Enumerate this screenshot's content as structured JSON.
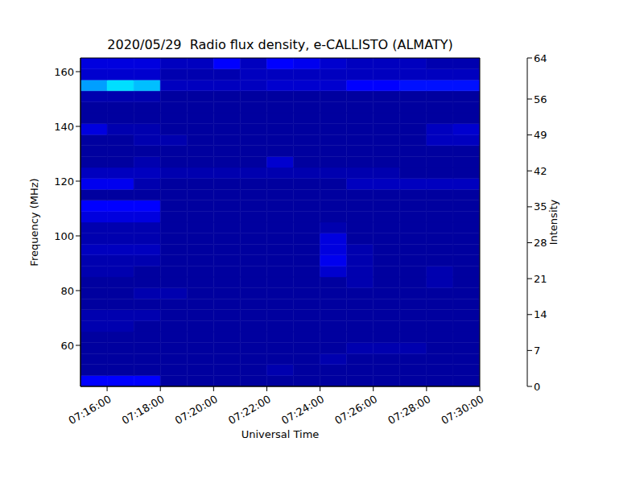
{
  "chart_data": {
    "type": "heatmap",
    "title": "2020/05/29  Radio flux density, e-CALLISTO (ALMATY)",
    "x_label": "Universal Time",
    "y_label": "Frequency (MHz)",
    "xlim": [
      26100,
      27000
    ],
    "xticks": [
      {
        "value": 26160,
        "label": "07:16:00"
      },
      {
        "value": 26280,
        "label": "07:18:00"
      },
      {
        "value": 26400,
        "label": "07:20:00"
      },
      {
        "value": 26520,
        "label": "07:22:00"
      },
      {
        "value": 26640,
        "label": "07:24:00"
      },
      {
        "value": 26760,
        "label": "07:26:00"
      },
      {
        "value": 26880,
        "label": "07:28:00"
      },
      {
        "value": 27000,
        "label": "07:30:00"
      }
    ],
    "ylim": [
      45,
      165
    ],
    "yticks": [
      60,
      80,
      100,
      120,
      140,
      160
    ],
    "grid": false,
    "color": "jet",
    "x_bins": [
      26100,
      26160,
      26220,
      26280,
      26340,
      26400,
      26460,
      26520,
      26580,
      26640,
      26700,
      26760,
      26820,
      26880,
      26940,
      27000
    ],
    "y_bins": [
      45,
      49,
      53,
      57,
      61,
      65,
      69,
      73,
      77,
      81,
      85,
      89,
      93,
      97,
      101,
      105,
      109,
      113,
      117,
      121,
      125,
      129,
      133,
      137,
      141,
      145,
      149,
      153,
      157,
      161,
      165
    ],
    "z": [
      [
        8,
        8,
        8,
        2,
        2,
        2,
        2,
        2,
        2,
        2,
        2,
        2,
        2,
        2,
        2
      ],
      [
        2,
        2,
        2,
        2,
        2,
        2,
        2,
        3,
        2,
        2,
        2,
        2,
        2,
        2,
        2
      ],
      [
        2,
        2,
        2,
        2,
        2,
        2,
        2,
        2,
        2,
        3,
        2,
        2,
        2,
        2,
        2
      ],
      [
        2,
        2,
        2,
        2,
        2,
        2,
        2,
        2,
        2,
        2,
        3,
        3,
        3,
        2,
        2
      ],
      [
        2,
        2,
        2,
        2,
        2,
        2,
        2,
        2,
        2,
        2,
        2,
        2,
        2,
        2,
        2
      ],
      [
        3,
        3,
        2,
        2,
        2,
        2,
        2,
        2,
        2,
        2,
        2,
        2,
        2,
        2,
        2
      ],
      [
        3,
        3,
        3,
        2,
        2,
        2,
        2,
        2,
        2,
        2,
        2,
        2,
        2,
        2,
        2
      ],
      [
        2,
        2,
        2,
        2,
        2,
        2,
        2,
        2,
        2,
        2,
        2,
        2,
        2,
        2,
        2
      ],
      [
        2,
        2,
        3,
        3,
        2,
        2,
        2,
        2,
        2,
        2,
        2,
        2,
        2,
        2,
        2
      ],
      [
        2,
        2,
        2,
        2,
        2,
        2,
        2,
        2,
        2,
        2,
        3,
        2,
        2,
        3,
        2
      ],
      [
        3,
        3,
        2,
        2,
        2,
        2,
        2,
        2,
        2,
        5,
        3,
        2,
        2,
        3,
        2
      ],
      [
        3,
        3,
        3,
        2,
        2,
        2,
        2,
        2,
        2,
        7,
        3,
        2,
        2,
        2,
        2
      ],
      [
        4,
        4,
        4,
        2,
        2,
        2,
        2,
        2,
        2,
        6,
        3,
        2,
        2,
        2,
        2
      ],
      [
        3,
        3,
        3,
        2,
        2,
        2,
        2,
        2,
        2,
        6,
        2,
        2,
        2,
        2,
        2
      ],
      [
        3,
        3,
        3,
        2,
        2,
        2,
        2,
        2,
        2,
        3,
        2,
        2,
        2,
        2,
        2
      ],
      [
        6,
        6,
        6,
        2,
        2,
        2,
        2,
        2,
        2,
        2,
        2,
        2,
        2,
        2,
        2
      ],
      [
        8,
        8,
        8,
        2,
        2,
        2,
        2,
        2,
        2,
        2,
        2,
        2,
        2,
        2,
        2
      ],
      [
        2,
        2,
        2,
        2,
        2,
        2,
        2,
        2,
        2,
        2,
        2,
        2,
        2,
        2,
        2
      ],
      [
        7,
        7,
        3,
        2,
        2,
        2,
        2,
        2,
        2,
        2,
        4,
        4,
        4,
        4,
        4
      ],
      [
        4,
        4,
        4,
        3,
        3,
        3,
        3,
        3,
        3,
        3,
        3,
        3,
        2,
        2,
        2
      ],
      [
        2,
        2,
        3,
        2,
        2,
        2,
        2,
        5,
        2,
        2,
        2,
        2,
        2,
        2,
        2
      ],
      [
        2,
        2,
        2,
        2,
        2,
        2,
        2,
        2,
        2,
        2,
        2,
        2,
        2,
        2,
        2
      ],
      [
        2,
        2,
        3,
        3,
        2,
        2,
        2,
        2,
        2,
        2,
        2,
        2,
        2,
        4,
        4
      ],
      [
        6,
        3,
        3,
        2,
        2,
        2,
        2,
        2,
        2,
        2,
        2,
        2,
        2,
        4,
        5
      ],
      [
        2,
        2,
        2,
        2,
        2,
        2,
        2,
        2,
        2,
        2,
        2,
        2,
        2,
        2,
        2
      ],
      [
        2,
        2,
        2,
        2,
        2,
        2,
        2,
        2,
        2,
        2,
        2,
        2,
        2,
        2,
        2
      ],
      [
        3,
        3,
        3,
        2,
        2,
        2,
        2,
        2,
        2,
        2,
        2,
        2,
        2,
        2,
        2
      ],
      [
        18,
        22,
        20,
        4,
        4,
        4,
        4,
        5,
        5,
        5,
        8,
        8,
        9,
        9,
        9
      ],
      [
        5,
        5,
        5,
        3,
        3,
        3,
        4,
        4,
        4,
        4,
        4,
        4,
        4,
        4,
        4
      ],
      [
        6,
        6,
        6,
        4,
        4,
        8,
        4,
        8,
        7,
        5,
        4,
        4,
        4,
        3,
        3
      ]
    ],
    "colorbar": {
      "label": "Intensity",
      "range": [
        0,
        64
      ],
      "ticks": [
        0,
        7,
        14,
        21,
        28,
        35,
        42,
        49,
        56,
        64
      ]
    }
  }
}
